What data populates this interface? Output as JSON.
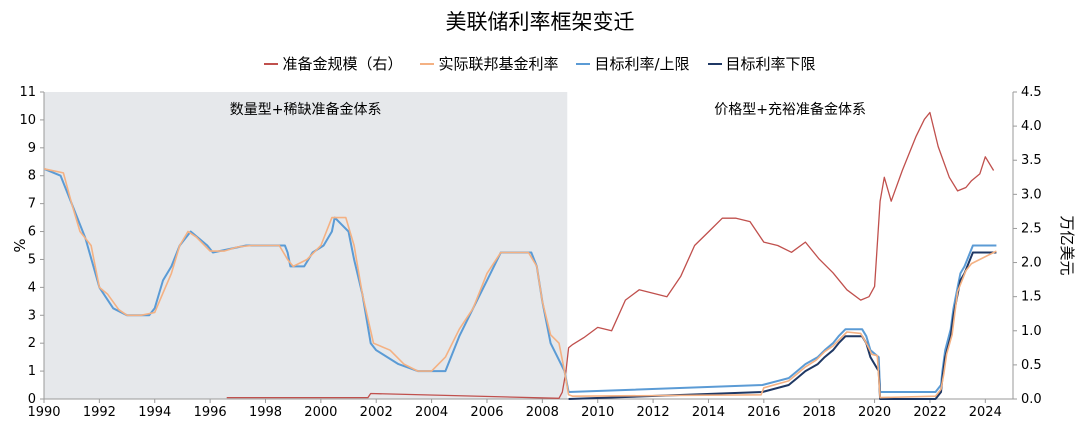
{
  "title": "美联储利率框架变迁",
  "chart_data": {
    "type": "line",
    "title": "美联储利率框架变迁",
    "ylabel_left": "%",
    "ylabel_right": "万亿美元",
    "xlim": [
      1990,
      2025
    ],
    "ylim_left": [
      0,
      11
    ],
    "ylim_right": [
      0,
      4.5
    ],
    "x_ticks": [
      "1990",
      "1992",
      "1994",
      "1996",
      "1998",
      "2000",
      "2002",
      "2004",
      "2006",
      "2008",
      "2010",
      "2012",
      "2014",
      "2016",
      "2018",
      "2020",
      "2022",
      "2024"
    ],
    "y_ticks_left": [
      "0",
      "1",
      "2",
      "3",
      "4",
      "5",
      "6",
      "7",
      "8",
      "9",
      "10",
      "11"
    ],
    "y_ticks_right": [
      "0.0",
      "0.5",
      "1.0",
      "1.5",
      "2.0",
      "2.5",
      "3.0",
      "3.5",
      "4.0",
      "4.5"
    ],
    "legend_position": "top",
    "grid": false,
    "regions": [
      {
        "label": "数量型+稀缺准备金体系",
        "x_range": [
          1990,
          2008.9
        ],
        "shaded": true,
        "color": "#e6e8eb"
      },
      {
        "label": "价格型+充裕准备金体系",
        "x_range": [
          2008.9,
          2025
        ],
        "shaded": false
      }
    ],
    "series": [
      {
        "name": "准备金规模（右）",
        "axis": "right",
        "color": "#c0504d",
        "x": [
          1996.6,
          2001.7,
          2001.8,
          2008.6,
          2008.72,
          2008.85,
          2008.95,
          2009.1,
          2009.5,
          2010.0,
          2010.5,
          2011.0,
          2011.5,
          2012.0,
          2012.5,
          2013.0,
          2013.5,
          2014.0,
          2014.5,
          2015.0,
          2015.5,
          2016.0,
          2016.5,
          2017.0,
          2017.5,
          2018.0,
          2018.5,
          2019.0,
          2019.5,
          2019.8,
          2020.0,
          2020.2,
          2020.35,
          2020.6,
          2021.0,
          2021.5,
          2021.8,
          2022.0,
          2022.3,
          2022.7,
          2023.0,
          2023.3,
          2023.5,
          2023.8,
          2024.0,
          2024.3
        ],
        "values": [
          0.02,
          0.02,
          0.08,
          0.01,
          0.1,
          0.4,
          0.75,
          0.8,
          0.9,
          1.05,
          1.0,
          1.45,
          1.6,
          1.55,
          1.5,
          1.8,
          2.25,
          2.45,
          2.65,
          2.65,
          2.6,
          2.3,
          2.25,
          2.15,
          2.3,
          2.05,
          1.85,
          1.6,
          1.45,
          1.5,
          1.65,
          2.9,
          3.25,
          2.9,
          3.35,
          3.85,
          4.1,
          4.2,
          3.7,
          3.25,
          3.05,
          3.1,
          3.2,
          3.3,
          3.55,
          3.35
        ]
      },
      {
        "name": "实际联邦基金利率",
        "axis": "left",
        "color": "#f4b183",
        "x": [
          1990.0,
          1990.7,
          1991.0,
          1991.3,
          1991.7,
          1992.0,
          1992.3,
          1992.7,
          1993.0,
          1993.5,
          1994.0,
          1994.3,
          1994.6,
          1994.9,
          1995.2,
          1995.5,
          1996.0,
          1996.5,
          1997.0,
          1997.5,
          1998.0,
          1998.5,
          1998.8,
          1999.0,
          1999.5,
          2000.0,
          2000.4,
          2000.9,
          2001.2,
          2001.5,
          2001.9,
          2002.5,
          2003.0,
          2003.5,
          2004.0,
          2004.5,
          2005.0,
          2005.5,
          2006.0,
          2006.5,
          2007.0,
          2007.5,
          2007.8,
          2008.0,
          2008.3,
          2008.6,
          2008.8,
          2008.95,
          2009.1,
          2015.9,
          2016.0,
          2016.9,
          2017.2,
          2017.5,
          2017.9,
          2018.2,
          2018.5,
          2018.8,
          2019.0,
          2019.5,
          2019.7,
          2019.9,
          2020.1,
          2020.2,
          2022.2,
          2022.4,
          2022.5,
          2022.6,
          2022.8,
          2022.9,
          2023.0,
          2023.2,
          2023.3,
          2023.5,
          2024.4
        ],
        "values": [
          8.25,
          8.1,
          7.0,
          6.0,
          5.5,
          4.0,
          3.75,
          3.2,
          3.0,
          3.0,
          3.1,
          3.8,
          4.5,
          5.5,
          6.0,
          5.8,
          5.3,
          5.3,
          5.45,
          5.5,
          5.5,
          5.5,
          5.0,
          4.75,
          5.0,
          5.5,
          6.5,
          6.5,
          5.5,
          3.75,
          2.0,
          1.75,
          1.25,
          1.0,
          1.0,
          1.5,
          2.5,
          3.25,
          4.5,
          5.25,
          5.25,
          5.25,
          4.75,
          3.5,
          2.3,
          2.0,
          1.0,
          0.15,
          0.1,
          0.15,
          0.4,
          0.65,
          0.9,
          1.15,
          1.4,
          1.7,
          1.9,
          2.2,
          2.4,
          2.35,
          2.0,
          1.6,
          1.55,
          0.05,
          0.1,
          0.35,
          0.9,
          1.6,
          2.3,
          3.1,
          3.85,
          4.35,
          4.6,
          4.85,
          5.3
        ]
      },
      {
        "name": "目标利率/上限",
        "axis": "left",
        "color": "#5b9bd5",
        "x": [
          1990.0,
          1990.6,
          1991.0,
          1991.5,
          1992.0,
          1992.5,
          1993.0,
          1993.8,
          1994.0,
          1994.3,
          1994.6,
          1994.9,
          1995.3,
          1995.6,
          1995.9,
          1996.1,
          1997.3,
          1998.7,
          1998.8,
          1998.9,
          1999.4,
          1999.7,
          2000.1,
          2000.4,
          2000.5,
          2001.0,
          2001.2,
          2001.5,
          2001.8,
          2002.0,
          2002.8,
          2003.5,
          2004.5,
          2005.0,
          2005.5,
          2006.0,
          2006.5,
          2007.6,
          2007.8,
          2008.0,
          2008.3,
          2008.8,
          2008.95,
          2015.95,
          2016.9,
          2017.2,
          2017.5,
          2017.95,
          2018.2,
          2018.5,
          2018.7,
          2018.95,
          2019.55,
          2019.7,
          2019.85,
          2020.15,
          2020.2,
          2022.2,
          2022.4,
          2022.45,
          2022.55,
          2022.75,
          2022.85,
          2023.0,
          2023.1,
          2023.25,
          2023.35,
          2023.55,
          2024.4
        ],
        "values": [
          8.25,
          8.0,
          7.0,
          5.75,
          4.0,
          3.25,
          3.0,
          3.0,
          3.25,
          4.25,
          4.75,
          5.5,
          6.0,
          5.75,
          5.5,
          5.25,
          5.5,
          5.5,
          5.25,
          4.75,
          4.75,
          5.25,
          5.5,
          6.0,
          6.5,
          6.0,
          5.0,
          3.75,
          2.0,
          1.75,
          1.25,
          1.0,
          1.0,
          2.25,
          3.25,
          4.25,
          5.25,
          5.25,
          4.75,
          3.5,
          2.0,
          1.0,
          0.25,
          0.5,
          0.75,
          1.0,
          1.25,
          1.5,
          1.75,
          2.0,
          2.25,
          2.5,
          2.5,
          2.25,
          1.75,
          1.5,
          0.25,
          0.25,
          0.5,
          1.0,
          1.75,
          2.5,
          3.25,
          4.0,
          4.5,
          4.75,
          5.0,
          5.5,
          5.5
        ]
      },
      {
        "name": "目标利率下限",
        "axis": "left",
        "color": "#1f3864",
        "x": [
          2008.95,
          2015.95,
          2016.9,
          2017.2,
          2017.5,
          2017.95,
          2018.2,
          2018.5,
          2018.7,
          2018.95,
          2019.55,
          2019.7,
          2019.85,
          2020.15,
          2020.2,
          2022.2,
          2022.4,
          2022.45,
          2022.55,
          2022.75,
          2022.85,
          2023.0,
          2023.1,
          2023.25,
          2023.35,
          2023.55,
          2024.4
        ],
        "values": [
          0.0,
          0.25,
          0.5,
          0.75,
          1.0,
          1.25,
          1.5,
          1.75,
          2.0,
          2.25,
          2.25,
          2.0,
          1.5,
          1.0,
          0.0,
          0.0,
          0.25,
          0.75,
          1.5,
          2.25,
          3.0,
          3.75,
          4.25,
          4.5,
          4.75,
          5.25,
          5.25
        ]
      }
    ]
  }
}
